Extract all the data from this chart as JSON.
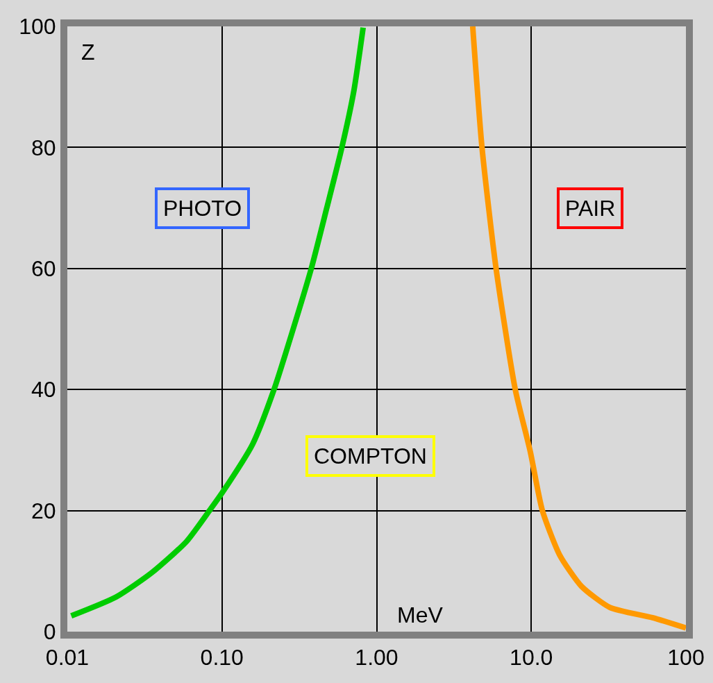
{
  "chart_data": {
    "type": "line",
    "xlabel": "MeV",
    "ylabel": "Z",
    "log": "x",
    "grid": true,
    "marker": "none",
    "line_style": "solid",
    "xlim": [
      0.01,
      100
    ],
    "xticks": [
      {
        "value": 0.01,
        "label": "0.01"
      },
      {
        "value": 0.1,
        "label": "0.10"
      },
      {
        "value": 1,
        "label": "1.00"
      },
      {
        "value": 10,
        "label": "10.0"
      },
      {
        "value": 100,
        "label": "100"
      }
    ],
    "ylim": [
      0,
      100
    ],
    "yticks": [
      0,
      20,
      40,
      60,
      80,
      100
    ],
    "series": [
      {
        "color": "#00cc00",
        "x": [
          0.0106,
          0.0206,
          0.035,
          0.059,
          0.083,
          0.1,
          0.158,
          0.217,
          0.283,
          0.378,
          0.476,
          0.596,
          0.713,
          0.818
        ],
        "values": [
          2.6,
          5.7,
          9.7,
          14.9,
          20,
          22.9,
          31,
          40,
          49.3,
          60,
          70,
          80,
          89.4,
          99.8
        ]
      },
      {
        "color": "#ff9900",
        "x": [
          4.18,
          4.8,
          5.92,
          7.88,
          9.84,
          11.8,
          15.3,
          21.1,
          32.2,
          60.8,
          100
        ],
        "values": [
          100,
          80,
          60,
          40,
          29.8,
          20,
          12.6,
          7.5,
          4.0,
          2.3,
          0.6
        ]
      }
    ],
    "annotations": [
      "PHOTO",
      "PAIR",
      "COMPTON"
    ]
  }
}
